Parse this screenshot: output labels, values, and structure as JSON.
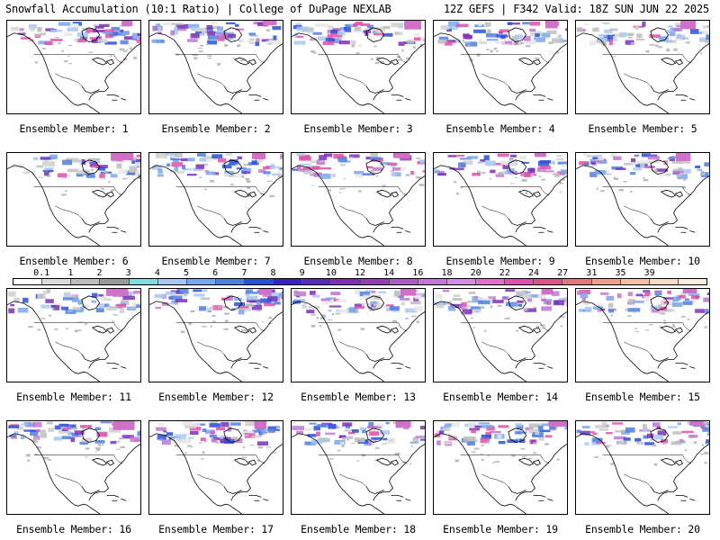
{
  "header": {
    "title": "Snowfall Accumulation (10:1 Ratio) | College of DuPage NEXLAB",
    "run_info": "12Z GEFS | F342 Valid: 18Z SUN JUN 22 2025"
  },
  "colorbar": {
    "labels": [
      "0.1",
      "1",
      "2",
      "3",
      "4",
      "5",
      "6",
      "7",
      "8",
      "9",
      "10",
      "12",
      "14",
      "16",
      "18",
      "20",
      "22",
      "24",
      "27",
      "31",
      "35",
      "39"
    ],
    "colors": [
      "#ffffff",
      "#dcdcdc",
      "#bdbdbd",
      "#9a9a9a",
      "#7fdde0",
      "#a8c8f0",
      "#7aa6ec",
      "#4f7fe0",
      "#2a4fd8",
      "#3a20c8",
      "#5a28c0",
      "#7a30b8",
      "#9040b0",
      "#a860c0",
      "#c078d0",
      "#d090e0",
      "#e070c8",
      "#e050a8",
      "#e0508a",
      "#e07a7a",
      "#e8a090",
      "#f0c0a8",
      "#f8dcc8",
      "#fbeee0"
    ]
  },
  "members": [
    {
      "caption": "Ensemble Member: 1"
    },
    {
      "caption": "Ensemble Member: 2"
    },
    {
      "caption": "Ensemble Member: 3"
    },
    {
      "caption": "Ensemble Member: 4"
    },
    {
      "caption": "Ensemble Member: 5"
    },
    {
      "caption": "Ensemble Member: 6"
    },
    {
      "caption": "Ensemble Member: 7"
    },
    {
      "caption": "Ensemble Member: 8"
    },
    {
      "caption": "Ensemble Member: 9"
    },
    {
      "caption": "Ensemble Member: 10"
    },
    {
      "caption": "Ensemble Member: 11"
    },
    {
      "caption": "Ensemble Member: 12"
    },
    {
      "caption": "Ensemble Member: 13"
    },
    {
      "caption": "Ensemble Member: 14"
    },
    {
      "caption": "Ensemble Member: 15"
    },
    {
      "caption": "Ensemble Member: 16"
    },
    {
      "caption": "Ensemble Member: 17"
    },
    {
      "caption": "Ensemble Member: 18"
    },
    {
      "caption": "Ensemble Member: 19"
    },
    {
      "caption": "Ensemble Member: 20"
    }
  ]
}
